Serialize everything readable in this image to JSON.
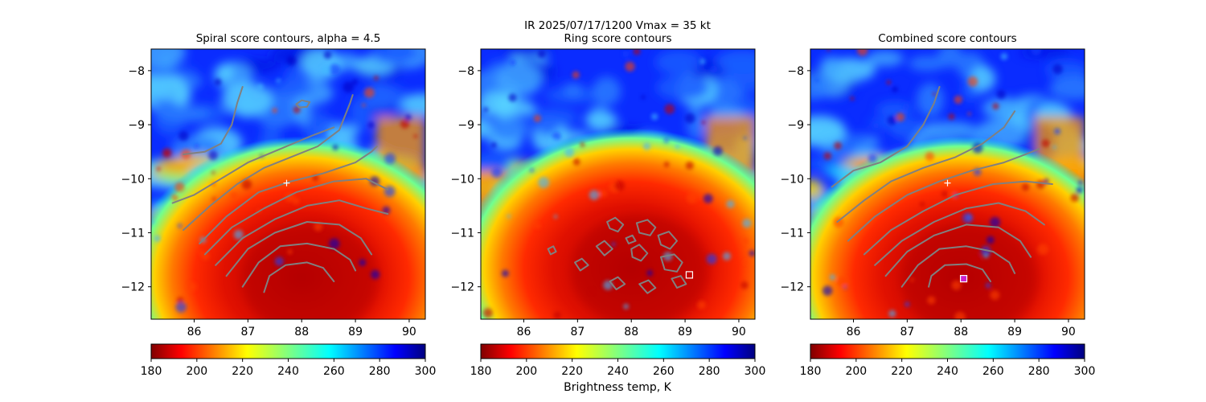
{
  "suptitle": "IR  2025/07/17/1200    Vmax = 35 kt",
  "colorbar_label": "Brightness temp, K",
  "chart_data": [
    {
      "type": "heatmap",
      "title": "Spiral score contours, alpha =  4.5",
      "xlim": [
        85.2,
        90.3
      ],
      "ylim": [
        -12.6,
        -7.6
      ],
      "xticks": [
        "86",
        "87",
        "88",
        "89",
        "90"
      ],
      "yticks": [
        "−8",
        "−9",
        "−10",
        "−11",
        "−12"
      ],
      "colorbar": {
        "cmap": "jet_r",
        "range": [
          180,
          300
        ],
        "ticks": [
          "180",
          "200",
          "220",
          "240",
          "260",
          "280",
          "300"
        ]
      },
      "contour_color": "#808080",
      "marker": {
        "type": "plus",
        "x": 87.72,
        "y": -10.08,
        "color": "#ffffff"
      },
      "cloud_center": {
        "x": 88.0,
        "y": -11.7
      },
      "contours": [
        [
          [
            85.8,
            -9.55
          ],
          [
            86.2,
            -9.5
          ],
          [
            86.5,
            -9.35
          ],
          [
            86.7,
            -9.0
          ],
          [
            86.8,
            -8.6
          ],
          [
            86.9,
            -8.3
          ]
        ],
        [
          [
            85.6,
            -10.45
          ],
          [
            86.0,
            -10.3
          ],
          [
            86.5,
            -10.0
          ],
          [
            87.0,
            -9.7
          ],
          [
            87.6,
            -9.45
          ],
          [
            88.2,
            -9.2
          ],
          [
            88.6,
            -9.05
          ]
        ],
        [
          [
            85.8,
            -10.95
          ],
          [
            86.3,
            -10.5
          ],
          [
            86.8,
            -10.1
          ],
          [
            87.3,
            -9.8
          ],
          [
            87.8,
            -9.6
          ],
          [
            88.3,
            -9.4
          ],
          [
            88.7,
            -9.1
          ],
          [
            88.9,
            -8.6
          ],
          [
            88.95,
            -8.45
          ]
        ],
        [
          [
            86.1,
            -11.2
          ],
          [
            86.6,
            -10.7
          ],
          [
            87.2,
            -10.25
          ],
          [
            87.8,
            -10.05
          ],
          [
            88.4,
            -9.9
          ],
          [
            89.0,
            -9.7
          ],
          [
            89.3,
            -9.5
          ],
          [
            89.4,
            -9.4
          ]
        ],
        [
          [
            86.2,
            -11.4
          ],
          [
            86.7,
            -10.9
          ],
          [
            87.3,
            -10.55
          ],
          [
            87.9,
            -10.25
          ],
          [
            88.6,
            -10.05
          ],
          [
            89.2,
            -10.0
          ],
          [
            89.6,
            -10.2
          ]
        ],
        [
          [
            86.4,
            -11.6
          ],
          [
            86.9,
            -11.1
          ],
          [
            87.5,
            -10.75
          ],
          [
            88.1,
            -10.5
          ],
          [
            88.7,
            -10.4
          ],
          [
            89.2,
            -10.55
          ],
          [
            89.6,
            -10.65
          ]
        ],
        [
          [
            86.6,
            -11.8
          ],
          [
            87.0,
            -11.3
          ],
          [
            87.5,
            -11.0
          ],
          [
            88.1,
            -10.8
          ],
          [
            88.7,
            -10.85
          ],
          [
            89.1,
            -11.1
          ],
          [
            89.3,
            -11.4
          ]
        ],
        [
          [
            86.9,
            -12.0
          ],
          [
            87.2,
            -11.55
          ],
          [
            87.6,
            -11.25
          ],
          [
            88.1,
            -11.2
          ],
          [
            88.6,
            -11.3
          ],
          [
            88.9,
            -11.5
          ],
          [
            89.0,
            -11.7
          ]
        ],
        [
          [
            87.3,
            -12.1
          ],
          [
            87.4,
            -11.8
          ],
          [
            87.7,
            -11.6
          ],
          [
            88.1,
            -11.55
          ],
          [
            88.4,
            -11.65
          ],
          [
            88.6,
            -11.9
          ]
        ],
        [
          [
            87.9,
            -8.62
          ],
          [
            88.0,
            -8.55
          ],
          [
            88.15,
            -8.58
          ],
          [
            88.1,
            -8.67
          ],
          [
            87.95,
            -8.68
          ],
          [
            87.9,
            -8.62
          ]
        ]
      ]
    },
    {
      "type": "heatmap",
      "title": "Ring score contours",
      "xlim": [
        85.2,
        90.3
      ],
      "ylim": [
        -12.6,
        -7.6
      ],
      "xticks": [
        "86",
        "87",
        "88",
        "89",
        "90"
      ],
      "yticks": [
        "−8",
        "−9",
        "−10",
        "−11",
        "−12"
      ],
      "colorbar": {
        "cmap": "jet_r",
        "range": [
          180,
          300
        ],
        "ticks": [
          "180",
          "200",
          "220",
          "240",
          "260",
          "280",
          "300"
        ]
      },
      "contour_color": "#808080",
      "marker": {
        "type": "square",
        "x": 89.08,
        "y": -11.78,
        "color": "#ffffff"
      },
      "cloud_center": {
        "x": 88.0,
        "y": -11.55
      },
      "contours": [
        [
          [
            87.55,
            -10.8
          ],
          [
            87.7,
            -10.72
          ],
          [
            87.85,
            -10.85
          ],
          [
            87.75,
            -10.98
          ],
          [
            87.6,
            -10.92
          ],
          [
            87.55,
            -10.8
          ]
        ],
        [
          [
            88.1,
            -10.82
          ],
          [
            88.3,
            -10.76
          ],
          [
            88.45,
            -10.9
          ],
          [
            88.35,
            -11.05
          ],
          [
            88.15,
            -11.0
          ],
          [
            88.1,
            -10.82
          ]
        ],
        [
          [
            88.5,
            -11.05
          ],
          [
            88.7,
            -10.98
          ],
          [
            88.85,
            -11.15
          ],
          [
            88.72,
            -11.3
          ],
          [
            88.55,
            -11.22
          ],
          [
            88.5,
            -11.05
          ]
        ],
        [
          [
            87.35,
            -11.25
          ],
          [
            87.5,
            -11.15
          ],
          [
            87.65,
            -11.3
          ],
          [
            87.5,
            -11.42
          ],
          [
            87.35,
            -11.25
          ]
        ],
        [
          [
            88.0,
            -11.3
          ],
          [
            88.15,
            -11.22
          ],
          [
            88.3,
            -11.38
          ],
          [
            88.18,
            -11.52
          ],
          [
            88.02,
            -11.45
          ],
          [
            88.0,
            -11.3
          ]
        ],
        [
          [
            88.55,
            -11.45
          ],
          [
            88.8,
            -11.4
          ],
          [
            88.95,
            -11.55
          ],
          [
            88.85,
            -11.72
          ],
          [
            88.62,
            -11.68
          ],
          [
            88.55,
            -11.45
          ]
        ],
        [
          [
            86.95,
            -11.55
          ],
          [
            87.08,
            -11.48
          ],
          [
            87.2,
            -11.6
          ],
          [
            87.05,
            -11.7
          ],
          [
            86.95,
            -11.55
          ]
        ],
        [
          [
            87.6,
            -11.9
          ],
          [
            87.75,
            -11.82
          ],
          [
            87.88,
            -11.95
          ],
          [
            87.72,
            -12.05
          ],
          [
            87.6,
            -11.9
          ]
        ],
        [
          [
            88.15,
            -11.95
          ],
          [
            88.32,
            -11.88
          ],
          [
            88.45,
            -12.02
          ],
          [
            88.3,
            -12.12
          ],
          [
            88.15,
            -11.95
          ]
        ],
        [
          [
            88.75,
            -11.85
          ],
          [
            88.92,
            -11.8
          ],
          [
            89.02,
            -11.95
          ],
          [
            88.85,
            -12.02
          ],
          [
            88.75,
            -11.85
          ]
        ],
        [
          [
            87.9,
            -11.1
          ],
          [
            88.02,
            -11.05
          ],
          [
            88.08,
            -11.15
          ],
          [
            87.95,
            -11.2
          ],
          [
            87.9,
            -11.1
          ]
        ],
        [
          [
            86.45,
            -11.3
          ],
          [
            86.55,
            -11.25
          ],
          [
            86.6,
            -11.35
          ],
          [
            86.5,
            -11.4
          ],
          [
            86.45,
            -11.3
          ]
        ]
      ]
    },
    {
      "type": "heatmap",
      "title": "Combined score contours",
      "xlim": [
        85.2,
        90.3
      ],
      "ylim": [
        -12.6,
        -7.6
      ],
      "xticks": [
        "86",
        "87",
        "88",
        "89",
        "90"
      ],
      "yticks": [
        "−8",
        "−9",
        "−10",
        "−11",
        "−12"
      ],
      "colorbar": {
        "cmap": "jet_r",
        "range": [
          180,
          300
        ],
        "ticks": [
          "180",
          "200",
          "220",
          "240",
          "260",
          "280",
          "300"
        ]
      },
      "contour_color": "#808080",
      "marker": {
        "type": "square-filled",
        "x": 88.05,
        "y": -11.85,
        "color": "#ffffff",
        "fill": "#cc22cc"
      },
      "marker2": {
        "type": "plus",
        "x": 87.75,
        "y": -10.08,
        "color": "#ffffff"
      },
      "cloud_center": {
        "x": 88.0,
        "y": -11.7
      },
      "contours": [
        [
          [
            85.6,
            -10.15
          ],
          [
            86.0,
            -9.85
          ],
          [
            86.5,
            -9.7
          ],
          [
            87.0,
            -9.4
          ],
          [
            87.3,
            -9.0
          ],
          [
            87.5,
            -8.6
          ],
          [
            87.6,
            -8.3
          ]
        ],
        [
          [
            85.7,
            -10.8
          ],
          [
            86.2,
            -10.4
          ],
          [
            86.7,
            -10.05
          ],
          [
            87.3,
            -9.8
          ],
          [
            87.9,
            -9.6
          ],
          [
            88.4,
            -9.35
          ],
          [
            88.8,
            -9.05
          ],
          [
            89.0,
            -8.75
          ]
        ],
        [
          [
            85.9,
            -11.15
          ],
          [
            86.4,
            -10.7
          ],
          [
            87.0,
            -10.3
          ],
          [
            87.6,
            -10.05
          ],
          [
            88.2,
            -9.85
          ],
          [
            88.8,
            -9.7
          ],
          [
            89.2,
            -9.55
          ],
          [
            89.45,
            -9.45
          ]
        ],
        [
          [
            86.2,
            -11.4
          ],
          [
            86.7,
            -10.95
          ],
          [
            87.3,
            -10.6
          ],
          [
            87.9,
            -10.3
          ],
          [
            88.6,
            -10.1
          ],
          [
            89.2,
            -10.05
          ],
          [
            89.7,
            -10.1
          ]
        ],
        [
          [
            86.4,
            -11.6
          ],
          [
            86.9,
            -11.15
          ],
          [
            87.5,
            -10.8
          ],
          [
            88.1,
            -10.55
          ],
          [
            88.7,
            -10.45
          ],
          [
            89.2,
            -10.6
          ],
          [
            89.55,
            -10.85
          ]
        ],
        [
          [
            86.6,
            -11.8
          ],
          [
            87.0,
            -11.35
          ],
          [
            87.5,
            -11.05
          ],
          [
            88.1,
            -10.85
          ],
          [
            88.7,
            -10.9
          ],
          [
            89.1,
            -11.15
          ],
          [
            89.3,
            -11.45
          ]
        ],
        [
          [
            86.9,
            -12.0
          ],
          [
            87.2,
            -11.6
          ],
          [
            87.6,
            -11.3
          ],
          [
            88.1,
            -11.25
          ],
          [
            88.6,
            -11.35
          ],
          [
            88.9,
            -11.55
          ],
          [
            89.0,
            -11.75
          ]
        ],
        [
          [
            87.4,
            -12.0
          ],
          [
            87.45,
            -11.8
          ],
          [
            87.7,
            -11.6
          ],
          [
            88.1,
            -11.58
          ],
          [
            88.4,
            -11.68
          ],
          [
            88.55,
            -11.9
          ]
        ]
      ]
    }
  ]
}
